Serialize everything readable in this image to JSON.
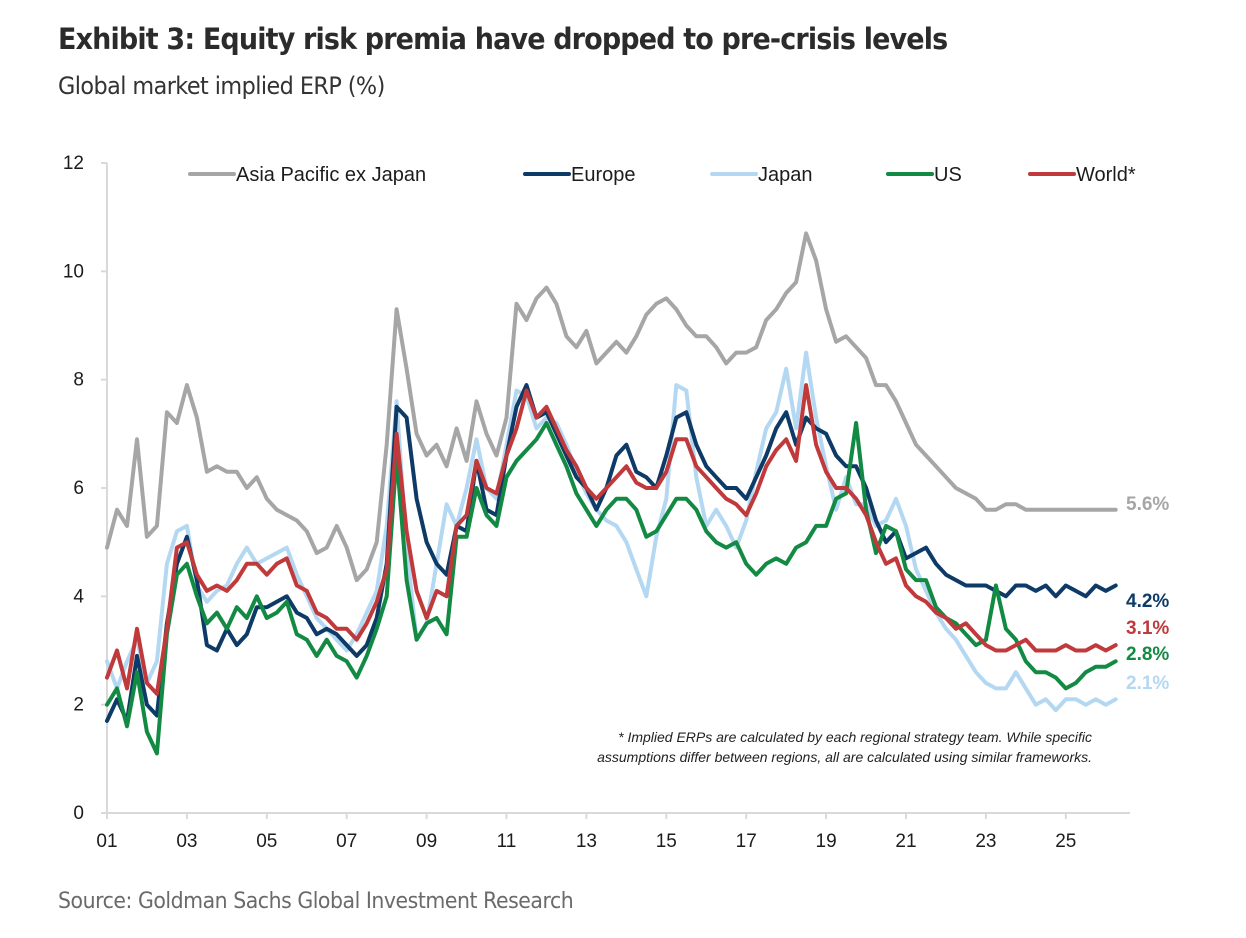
{
  "title": "Exhibit 3: Equity risk premia have dropped to pre-crisis levels",
  "subtitle": "Global market implied ERP (%)",
  "source": "Source: Goldman Sachs Global Investment Research",
  "chart_data": {
    "type": "line",
    "title": "Exhibit 3: Equity risk premia have dropped to pre-crisis levels",
    "subtitle": "Global market implied ERP (%)",
    "xlabel": "",
    "ylabel": "Global market implied ERP (%)",
    "ylim": [
      0,
      12
    ],
    "yticks": [
      0,
      2,
      4,
      6,
      8,
      10,
      12
    ],
    "xlim": [
      2001,
      2026.75
    ],
    "xticks": [
      2001,
      2003,
      2005,
      2007,
      2009,
      2011,
      2013,
      2015,
      2017,
      2019,
      2021,
      2023,
      2025
    ],
    "xtick_labels": [
      "01",
      "03",
      "05",
      "07",
      "09",
      "11",
      "13",
      "15",
      "17",
      "19",
      "21",
      "23",
      "25"
    ],
    "grid": false,
    "legend_position": "top",
    "footnote": [
      "* Implied ERPs are calculated by each regional strategy team. While specific",
      "assumptions differ between regions, all are calculated using similar frameworks."
    ],
    "x": [
      2001.0,
      2001.25,
      2001.5,
      2001.75,
      2002.0,
      2002.25,
      2002.5,
      2002.75,
      2003.0,
      2003.25,
      2003.5,
      2003.75,
      2004.0,
      2004.25,
      2004.5,
      2004.75,
      2005.0,
      2005.25,
      2005.5,
      2005.75,
      2006.0,
      2006.25,
      2006.5,
      2006.75,
      2007.0,
      2007.25,
      2007.5,
      2007.75,
      2008.0,
      2008.25,
      2008.5,
      2008.75,
      2009.0,
      2009.25,
      2009.5,
      2009.75,
      2010.0,
      2010.25,
      2010.5,
      2010.75,
      2011.0,
      2011.25,
      2011.5,
      2011.75,
      2012.0,
      2012.25,
      2012.5,
      2012.75,
      2013.0,
      2013.25,
      2013.5,
      2013.75,
      2014.0,
      2014.25,
      2014.5,
      2014.75,
      2015.0,
      2015.25,
      2015.5,
      2015.75,
      2016.0,
      2016.25,
      2016.5,
      2016.75,
      2017.0,
      2017.25,
      2017.5,
      2017.75,
      2018.0,
      2018.25,
      2018.5,
      2018.75,
      2019.0,
      2019.25,
      2019.5,
      2019.75,
      2020.0,
      2020.25,
      2020.5,
      2020.75,
      2021.0,
      2021.25,
      2021.5,
      2021.75,
      2022.0,
      2022.25,
      2022.5,
      2022.75,
      2023.0,
      2023.25,
      2023.5,
      2023.75,
      2024.0,
      2024.25,
      2024.5,
      2024.75,
      2025.0,
      2025.25,
      2025.5,
      2025.75,
      2026.0,
      2026.25
    ],
    "series": [
      {
        "name": "Asia Pacific ex Japan",
        "color": "#a6a6a6",
        "end_label": "5.6%",
        "values": [
          4.9,
          5.6,
          5.3,
          6.9,
          5.1,
          5.3,
          7.4,
          7.2,
          7.9,
          7.3,
          6.3,
          6.4,
          6.3,
          6.3,
          6.0,
          6.2,
          5.8,
          5.6,
          5.5,
          5.4,
          5.2,
          4.8,
          4.9,
          5.3,
          4.9,
          4.3,
          4.5,
          5.0,
          6.8,
          9.3,
          8.2,
          7.0,
          6.6,
          6.8,
          6.4,
          7.1,
          6.5,
          7.6,
          7.0,
          6.6,
          7.3,
          9.4,
          9.1,
          9.5,
          9.7,
          9.4,
          8.8,
          8.6,
          8.9,
          8.3,
          8.5,
          8.7,
          8.5,
          8.8,
          9.2,
          9.4,
          9.5,
          9.3,
          9.0,
          8.8,
          8.8,
          8.6,
          8.3,
          8.5,
          8.5,
          8.6,
          9.1,
          9.3,
          9.6,
          9.8,
          10.7,
          10.2,
          9.3,
          8.7,
          8.8,
          8.6,
          8.4,
          7.9,
          7.9,
          7.6,
          7.2,
          6.8,
          6.6,
          6.4,
          6.2,
          6.0,
          5.9,
          5.8,
          5.6,
          5.6,
          5.7,
          5.7,
          5.6,
          5.6,
          5.6,
          5.6,
          5.6,
          5.6,
          5.6,
          5.6,
          5.6,
          5.6
        ]
      },
      {
        "name": "Europe",
        "color": "#0d3a66",
        "end_label": "4.2%",
        "values": [
          1.7,
          2.1,
          1.7,
          2.9,
          2.0,
          1.8,
          3.5,
          4.6,
          5.1,
          4.3,
          3.1,
          3.0,
          3.4,
          3.1,
          3.3,
          3.8,
          3.8,
          3.9,
          4.0,
          3.7,
          3.6,
          3.3,
          3.4,
          3.3,
          3.1,
          2.9,
          3.1,
          3.6,
          4.6,
          7.5,
          7.3,
          5.8,
          5.0,
          4.6,
          4.4,
          5.3,
          5.2,
          6.5,
          5.6,
          5.5,
          6.6,
          7.5,
          7.9,
          7.3,
          7.4,
          7.0,
          6.6,
          6.2,
          6.0,
          5.6,
          6.0,
          6.6,
          6.8,
          6.3,
          6.2,
          6.0,
          6.6,
          7.3,
          7.4,
          6.8,
          6.4,
          6.2,
          6.0,
          6.0,
          5.8,
          6.2,
          6.6,
          7.1,
          7.4,
          6.8,
          7.3,
          7.1,
          7.0,
          6.6,
          6.4,
          6.4,
          6.0,
          5.4,
          5.0,
          5.2,
          4.7,
          4.8,
          4.9,
          4.6,
          4.4,
          4.3,
          4.2,
          4.2,
          4.2,
          4.1,
          4.0,
          4.2,
          4.2,
          4.1,
          4.2,
          4.0,
          4.2,
          4.1,
          4.0,
          4.2,
          4.1,
          4.2
        ]
      },
      {
        "name": "Japan",
        "color": "#b4d8f2",
        "end_label": "2.1%",
        "values": [
          2.8,
          2.3,
          2.8,
          3.2,
          2.4,
          2.8,
          4.6,
          5.2,
          5.3,
          4.2,
          3.9,
          4.1,
          4.2,
          4.6,
          4.9,
          4.6,
          4.7,
          4.8,
          4.9,
          4.4,
          4.0,
          3.6,
          3.4,
          3.2,
          3.0,
          3.3,
          3.7,
          4.1,
          5.3,
          7.6,
          4.9,
          3.2,
          3.5,
          4.6,
          5.7,
          5.3,
          6.0,
          6.9,
          6.0,
          5.8,
          6.8,
          7.8,
          7.7,
          7.1,
          7.3,
          7.2,
          6.8,
          6.3,
          5.9,
          5.6,
          5.4,
          5.3,
          5.0,
          4.5,
          4.0,
          5.1,
          5.8,
          7.9,
          7.8,
          6.2,
          5.3,
          5.6,
          5.3,
          4.9,
          5.4,
          6.3,
          7.1,
          7.4,
          8.2,
          7.1,
          8.5,
          7.3,
          6.4,
          5.6,
          6.2,
          5.7,
          5.7,
          5.3,
          5.4,
          5.8,
          5.3,
          4.5,
          4.1,
          3.7,
          3.4,
          3.2,
          2.9,
          2.6,
          2.4,
          2.3,
          2.3,
          2.6,
          2.3,
          2.0,
          2.1,
          1.9,
          2.1,
          2.1,
          2.0,
          2.1,
          2.0,
          2.1
        ]
      },
      {
        "name": "US",
        "color": "#138a43",
        "end_label": "2.8%",
        "values": [
          2.0,
          2.3,
          1.6,
          2.6,
          1.5,
          1.1,
          3.3,
          4.4,
          4.6,
          4.0,
          3.5,
          3.7,
          3.4,
          3.8,
          3.6,
          4.0,
          3.6,
          3.7,
          3.9,
          3.3,
          3.2,
          2.9,
          3.2,
          2.9,
          2.8,
          2.5,
          2.9,
          3.4,
          4.0,
          6.6,
          4.3,
          3.2,
          3.5,
          3.6,
          3.3,
          5.1,
          5.1,
          6.0,
          5.5,
          5.3,
          6.2,
          6.5,
          6.7,
          6.9,
          7.2,
          6.8,
          6.4,
          5.9,
          5.6,
          5.3,
          5.6,
          5.8,
          5.8,
          5.6,
          5.1,
          5.2,
          5.5,
          5.8,
          5.8,
          5.6,
          5.2,
          5.0,
          4.9,
          5.0,
          4.6,
          4.4,
          4.6,
          4.7,
          4.6,
          4.9,
          5.0,
          5.3,
          5.3,
          5.8,
          5.9,
          7.2,
          5.6,
          4.8,
          5.3,
          5.2,
          4.5,
          4.3,
          4.3,
          3.8,
          3.6,
          3.5,
          3.3,
          3.1,
          3.2,
          4.2,
          3.4,
          3.2,
          2.8,
          2.6,
          2.6,
          2.5,
          2.3,
          2.4,
          2.6,
          2.7,
          2.7,
          2.8
        ]
      },
      {
        "name": "World*",
        "color": "#c0393b",
        "end_label": "3.1%",
        "values": [
          2.5,
          3.0,
          2.3,
          3.4,
          2.4,
          2.2,
          3.4,
          4.9,
          5.0,
          4.4,
          4.1,
          4.2,
          4.1,
          4.3,
          4.6,
          4.6,
          4.4,
          4.6,
          4.7,
          4.2,
          4.1,
          3.7,
          3.6,
          3.4,
          3.4,
          3.2,
          3.5,
          3.9,
          4.5,
          7.0,
          5.2,
          4.1,
          3.6,
          4.1,
          4.0,
          5.3,
          5.5,
          6.5,
          6.0,
          5.9,
          6.6,
          7.1,
          7.8,
          7.3,
          7.5,
          7.1,
          6.7,
          6.4,
          6.0,
          5.8,
          6.0,
          6.2,
          6.4,
          6.1,
          6.0,
          6.0,
          6.3,
          6.9,
          6.9,
          6.4,
          6.2,
          6.0,
          5.8,
          5.7,
          5.5,
          5.9,
          6.4,
          6.7,
          6.9,
          6.5,
          7.9,
          6.8,
          6.3,
          6.0,
          6.0,
          5.8,
          5.5,
          5.0,
          4.6,
          4.7,
          4.2,
          4.0,
          3.9,
          3.7,
          3.6,
          3.4,
          3.5,
          3.3,
          3.1,
          3.0,
          3.0,
          3.1,
          3.2,
          3.0,
          3.0,
          3.0,
          3.1,
          3.0,
          3.0,
          3.1,
          3.0,
          3.1
        ]
      }
    ]
  }
}
